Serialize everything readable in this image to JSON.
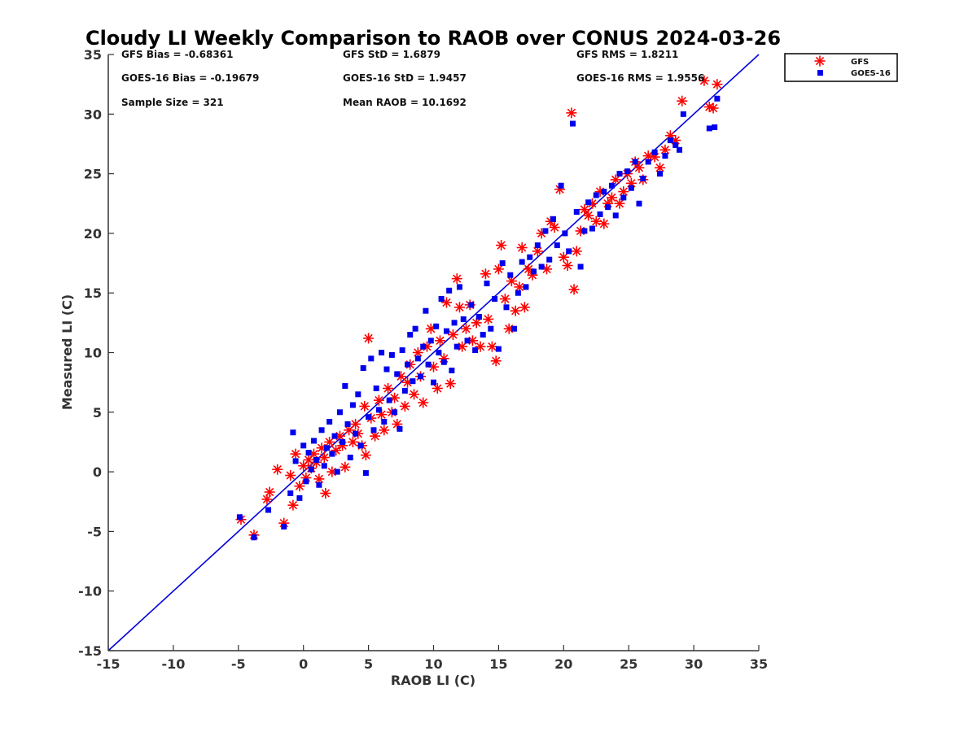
{
  "chart_data": {
    "type": "scatter",
    "title": "Cloudy LI Weekly Comparison to RAOB over CONUS 2024-03-26",
    "xlabel": "RAOB LI (C)",
    "ylabel": "Measured LI (C)",
    "xlim": [
      -15,
      35
    ],
    "ylim": [
      -15,
      35
    ],
    "xticks": [
      "-15",
      "-10",
      "-5",
      "0",
      "5",
      "10",
      "15",
      "20",
      "25",
      "30",
      "35"
    ],
    "yticks": [
      "-15",
      "-10",
      "-5",
      "0",
      "5",
      "10",
      "15",
      "20",
      "25",
      "30",
      "35"
    ],
    "grid": false,
    "legend_position": "outside-top-right",
    "reference_line": {
      "type": "one-to-one",
      "color": "#0000dd"
    },
    "stats": {
      "gfs_bias": "GFS Bias = -0.68361",
      "gfs_std": "GFS StD = 1.6879",
      "gfs_rms": "GFS RMS = 1.8211",
      "goes_bias": "GOES-16 Bias = -0.19679",
      "goes_std": "GOES-16 StD = 1.9457",
      "goes_rms": "GOES-16 RMS = 1.9556",
      "sample_size": "Sample Size = 321",
      "mean_raob": "Mean RAOB = 10.1692"
    },
    "series": [
      {
        "name": "GFS",
        "marker": "asterisk",
        "color": "#ff0000",
        "points": [
          [
            -4.8,
            -4
          ],
          [
            -3.8,
            -5.3
          ],
          [
            -2.8,
            -2.3
          ],
          [
            -2.6,
            -1.7
          ],
          [
            -2,
            0.2
          ],
          [
            -1.5,
            -4.3
          ],
          [
            -1,
            -0.3
          ],
          [
            -0.8,
            -2.8
          ],
          [
            -0.6,
            1.5
          ],
          [
            -0.3,
            -1.2
          ],
          [
            0,
            0.5
          ],
          [
            0.2,
            -0.5
          ],
          [
            0.4,
            1
          ],
          [
            0.6,
            0.3
          ],
          [
            0.8,
            1.5
          ],
          [
            1,
            0.8
          ],
          [
            1.2,
            -0.6
          ],
          [
            1.4,
            2
          ],
          [
            1.6,
            1.2
          ],
          [
            1.7,
            -1.8
          ],
          [
            2,
            2.5
          ],
          [
            2.2,
            0
          ],
          [
            2.5,
            1.8
          ],
          [
            2.8,
            3
          ],
          [
            3,
            2.2
          ],
          [
            3.2,
            0.4
          ],
          [
            3.5,
            3.5
          ],
          [
            3.8,
            2.5
          ],
          [
            4,
            4
          ],
          [
            4.2,
            3.2
          ],
          [
            4.5,
            2.2
          ],
          [
            4.7,
            5.5
          ],
          [
            4.8,
            1.4
          ],
          [
            5,
            11.2
          ],
          [
            5.2,
            4.5
          ],
          [
            5.5,
            3
          ],
          [
            5.8,
            6
          ],
          [
            6,
            4.8
          ],
          [
            6.2,
            3.5
          ],
          [
            6.5,
            7
          ],
          [
            6.8,
            5
          ],
          [
            7,
            6.2
          ],
          [
            7.2,
            4
          ],
          [
            7.5,
            8
          ],
          [
            7.8,
            5.5
          ],
          [
            8,
            7.5
          ],
          [
            8.2,
            9
          ],
          [
            8.5,
            6.5
          ],
          [
            8.8,
            10
          ],
          [
            9,
            8
          ],
          [
            9.2,
            5.8
          ],
          [
            9.5,
            10.5
          ],
          [
            9.8,
            12
          ],
          [
            10,
            8.8
          ],
          [
            10.3,
            7
          ],
          [
            10.5,
            11
          ],
          [
            10.8,
            9.5
          ],
          [
            11,
            14.2
          ],
          [
            11.3,
            7.4
          ],
          [
            11.5,
            11.5
          ],
          [
            11.8,
            16.2
          ],
          [
            12,
            13.8
          ],
          [
            12.2,
            10.5
          ],
          [
            12.5,
            12
          ],
          [
            12.8,
            14
          ],
          [
            13,
            11
          ],
          [
            13.3,
            12.5
          ],
          [
            13.6,
            10.5
          ],
          [
            14,
            16.6
          ],
          [
            14.2,
            12.8
          ],
          [
            14.5,
            10.5
          ],
          [
            14.8,
            9.3
          ],
          [
            15,
            17
          ],
          [
            15.2,
            19
          ],
          [
            15.5,
            14.5
          ],
          [
            15.8,
            12
          ],
          [
            16,
            16
          ],
          [
            16.3,
            13.5
          ],
          [
            16.6,
            15.5
          ],
          [
            16.8,
            18.8
          ],
          [
            17,
            13.8
          ],
          [
            17.3,
            17
          ],
          [
            17.6,
            16.5
          ],
          [
            18,
            18.5
          ],
          [
            18.3,
            20
          ],
          [
            18.7,
            17
          ],
          [
            19,
            21
          ],
          [
            19.3,
            20.5
          ],
          [
            19.7,
            23.7
          ],
          [
            20,
            18
          ],
          [
            20.3,
            17.3
          ],
          [
            20.6,
            30.1
          ],
          [
            20.8,
            15.3
          ],
          [
            21,
            18.5
          ],
          [
            21.3,
            20.2
          ],
          [
            21.6,
            22
          ],
          [
            21.9,
            21.5
          ],
          [
            22.2,
            22.5
          ],
          [
            22.5,
            21
          ],
          [
            22.8,
            23.5
          ],
          [
            23.1,
            20.8
          ],
          [
            23.4,
            22.5
          ],
          [
            23.7,
            23
          ],
          [
            24,
            24.5
          ],
          [
            24.3,
            22.5
          ],
          [
            24.6,
            23.5
          ],
          [
            24.9,
            25
          ],
          [
            25.2,
            24.2
          ],
          [
            25.5,
            26
          ],
          [
            25.8,
            25.5
          ],
          [
            26.1,
            24.5
          ],
          [
            26.5,
            26.5
          ],
          [
            27,
            26.4
          ],
          [
            27.4,
            25.5
          ],
          [
            27.8,
            27
          ],
          [
            28.2,
            28.2
          ],
          [
            28.6,
            27.8
          ],
          [
            29.1,
            31.1
          ],
          [
            30.8,
            32.8
          ],
          [
            31.2,
            30.6
          ],
          [
            31.5,
            30.5
          ],
          [
            31.8,
            32.5
          ]
        ]
      },
      {
        "name": "GOES-16",
        "marker": "square",
        "color": "#0000ee",
        "points": [
          [
            -4.9,
            -3.8
          ],
          [
            -3.8,
            -5.5
          ],
          [
            -2.7,
            -3.2
          ],
          [
            -1.5,
            -4.6
          ],
          [
            -1,
            -1.8
          ],
          [
            -0.8,
            3.3
          ],
          [
            -0.6,
            0.9
          ],
          [
            -0.3,
            -2.2
          ],
          [
            0,
            2.2
          ],
          [
            0.2,
            -0.8
          ],
          [
            0.4,
            1.6
          ],
          [
            0.6,
            0.2
          ],
          [
            0.8,
            2.6
          ],
          [
            1,
            1
          ],
          [
            1.2,
            -1.1
          ],
          [
            1.4,
            3.5
          ],
          [
            1.6,
            0.5
          ],
          [
            1.8,
            2
          ],
          [
            2,
            4.2
          ],
          [
            2.2,
            1.5
          ],
          [
            2.4,
            3
          ],
          [
            2.6,
            0
          ],
          [
            2.8,
            5
          ],
          [
            3,
            2.5
          ],
          [
            3.2,
            7.2
          ],
          [
            3.4,
            4
          ],
          [
            3.6,
            1.2
          ],
          [
            3.8,
            5.6
          ],
          [
            4,
            3.2
          ],
          [
            4.2,
            6.5
          ],
          [
            4.4,
            2.2
          ],
          [
            4.6,
            8.7
          ],
          [
            4.8,
            -0.1
          ],
          [
            5,
            4.6
          ],
          [
            5.2,
            9.5
          ],
          [
            5.4,
            3.5
          ],
          [
            5.6,
            7
          ],
          [
            5.8,
            5.2
          ],
          [
            6,
            10
          ],
          [
            6.2,
            4.2
          ],
          [
            6.4,
            8.6
          ],
          [
            6.6,
            6
          ],
          [
            6.8,
            9.8
          ],
          [
            7,
            5
          ],
          [
            7.2,
            8.2
          ],
          [
            7.4,
            3.6
          ],
          [
            7.6,
            10.2
          ],
          [
            7.8,
            6.8
          ],
          [
            8,
            9
          ],
          [
            8.2,
            11.5
          ],
          [
            8.4,
            7.6
          ],
          [
            8.6,
            12
          ],
          [
            8.8,
            9.5
          ],
          [
            9,
            8
          ],
          [
            9.2,
            10.5
          ],
          [
            9.4,
            13.5
          ],
          [
            9.6,
            9
          ],
          [
            9.8,
            11
          ],
          [
            10,
            7.5
          ],
          [
            10.2,
            12.2
          ],
          [
            10.4,
            10
          ],
          [
            10.6,
            14.5
          ],
          [
            10.8,
            9.2
          ],
          [
            11,
            11.8
          ],
          [
            11.2,
            15.2
          ],
          [
            11.4,
            8.5
          ],
          [
            11.6,
            12.5
          ],
          [
            11.8,
            10.5
          ],
          [
            12,
            15.5
          ],
          [
            12.3,
            12.8
          ],
          [
            12.6,
            11
          ],
          [
            12.9,
            14
          ],
          [
            13.2,
            10.2
          ],
          [
            13.5,
            13
          ],
          [
            13.8,
            11.5
          ],
          [
            14.1,
            15.8
          ],
          [
            14.4,
            12
          ],
          [
            14.7,
            14.5
          ],
          [
            15,
            10.3
          ],
          [
            15.3,
            17.5
          ],
          [
            15.6,
            13.8
          ],
          [
            15.9,
            16.5
          ],
          [
            16.2,
            12
          ],
          [
            16.5,
            15
          ],
          [
            16.8,
            17.6
          ],
          [
            17.1,
            15.5
          ],
          [
            17.4,
            18
          ],
          [
            17.7,
            16.8
          ],
          [
            18,
            19
          ],
          [
            18.3,
            17.2
          ],
          [
            18.6,
            20.2
          ],
          [
            18.9,
            17.8
          ],
          [
            19.2,
            21.2
          ],
          [
            19.5,
            19
          ],
          [
            19.8,
            24
          ],
          [
            20.1,
            20
          ],
          [
            20.4,
            18.5
          ],
          [
            20.7,
            29.2
          ],
          [
            21,
            21.8
          ],
          [
            21.3,
            17.2
          ],
          [
            21.6,
            20.2
          ],
          [
            21.9,
            22.6
          ],
          [
            22.2,
            20.4
          ],
          [
            22.5,
            23.2
          ],
          [
            22.8,
            21.6
          ],
          [
            23.1,
            23.5
          ],
          [
            23.4,
            22.2
          ],
          [
            23.7,
            24
          ],
          [
            24,
            21.5
          ],
          [
            24.3,
            25
          ],
          [
            24.6,
            23
          ],
          [
            24.9,
            25.2
          ],
          [
            25.2,
            23.8
          ],
          [
            25.5,
            26
          ],
          [
            25.8,
            22.5
          ],
          [
            26.1,
            24.6
          ],
          [
            26.5,
            26
          ],
          [
            27,
            26.8
          ],
          [
            27.4,
            25
          ],
          [
            27.8,
            26.5
          ],
          [
            28.2,
            27.8
          ],
          [
            28.6,
            27.4
          ],
          [
            28.9,
            27
          ],
          [
            29.2,
            30
          ],
          [
            31.2,
            28.8
          ],
          [
            31.6,
            28.9
          ],
          [
            31.8,
            31.3
          ]
        ]
      }
    ]
  }
}
